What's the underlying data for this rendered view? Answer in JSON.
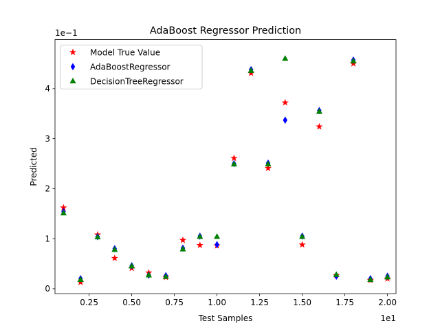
{
  "chart_data": {
    "type": "scatter",
    "title": "AdaBoost Regressor Prediction",
    "xlabel": "Test Samples",
    "ylabel": "Predicted",
    "x_offset_label": "1e1",
    "y_offset_label": "1e−1",
    "xlim": [
      0.05,
      2.05
    ],
    "ylim": [
      -0.1,
      4.98
    ],
    "x_ticks": [
      0.25,
      0.5,
      0.75,
      1.0,
      1.25,
      1.5,
      1.75,
      2.0
    ],
    "x_tick_labels": [
      "0.25",
      "0.50",
      "0.75",
      "1.00",
      "1.25",
      "1.50",
      "1.75",
      "2.00"
    ],
    "y_ticks": [
      0,
      1,
      2,
      3,
      4
    ],
    "y_tick_labels": [
      "0",
      "1",
      "2",
      "3",
      "4"
    ],
    "grid": false,
    "legend_position": "top-left",
    "x": [
      0.1,
      0.2,
      0.3,
      0.4,
      0.5,
      0.6,
      0.7,
      0.8,
      0.9,
      1.0,
      1.1,
      1.2,
      1.3,
      1.4,
      1.5,
      1.6,
      1.7,
      1.8,
      1.9,
      2.0
    ],
    "series": [
      {
        "name": "Model True Value",
        "marker": "star",
        "color": "#ff0000",
        "values": [
          1.62,
          0.13,
          1.08,
          0.61,
          0.41,
          0.32,
          0.23,
          0.97,
          0.87,
          0.86,
          2.61,
          4.31,
          2.41,
          3.72,
          0.88,
          3.24,
          0.27,
          4.5,
          0.17,
          0.2
        ]
      },
      {
        "name": "AdaBoostRegressor",
        "marker": "thin_diamond",
        "color": "#0000ff",
        "values": [
          1.54,
          0.2,
          1.04,
          0.8,
          0.46,
          0.27,
          0.26,
          0.81,
          1.05,
          0.88,
          2.5,
          4.38,
          2.51,
          3.37,
          1.05,
          3.56,
          0.25,
          4.57,
          0.2,
          0.25
        ]
      },
      {
        "name": "DecisionTreeRegressor",
        "marker": "triangle",
        "color": "#008000",
        "values": [
          1.51,
          0.18,
          1.03,
          0.78,
          0.45,
          0.27,
          0.24,
          0.79,
          1.04,
          1.04,
          2.49,
          4.36,
          2.49,
          4.6,
          1.04,
          3.54,
          0.28,
          4.55,
          0.18,
          0.23
        ]
      }
    ]
  }
}
